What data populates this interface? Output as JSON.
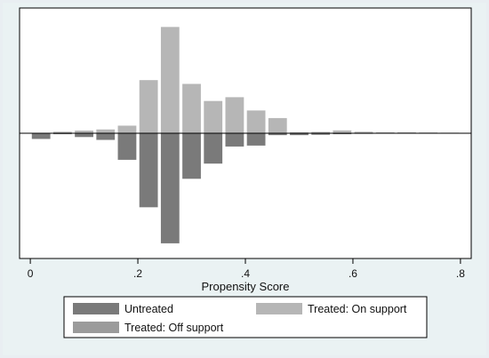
{
  "chart_data": {
    "type": "bar",
    "title": "",
    "xlabel": "Propensity Score",
    "ylabel": "",
    "xlim": [
      -0.02,
      0.82
    ],
    "ylim": [
      -0.66,
      0.66
    ],
    "bin_width": 0.04,
    "x_ticks": [
      {
        "value": 0,
        "label": "0"
      },
      {
        "value": 0.2,
        "label": ".2"
      },
      {
        "value": 0.4,
        "label": ".4"
      },
      {
        "value": 0.6,
        "label": ".6"
      },
      {
        "value": 0.8,
        "label": ".8"
      }
    ],
    "grid": false,
    "legend_position": "bottom",
    "series": [
      {
        "name": "Untreated",
        "color": "#7a7a7a",
        "direction": "down",
        "x": [
          0.02,
          0.06,
          0.1,
          0.14,
          0.18,
          0.22,
          0.26,
          0.3,
          0.34,
          0.38,
          0.42,
          0.46,
          0.5,
          0.54,
          0.58,
          0.62,
          0.66,
          0.7,
          0.74,
          0.78
        ],
        "values": [
          0.03,
          0.005,
          0.02,
          0.035,
          0.14,
          0.39,
          0.58,
          0.24,
          0.16,
          0.07,
          0.065,
          0.01,
          0.01,
          0.008,
          0.005,
          0.003,
          0.002,
          0.001,
          0.001,
          0.001
        ]
      },
      {
        "name": "Treated: On support",
        "color": "#b6b6b6",
        "direction": "up",
        "x": [
          0.02,
          0.06,
          0.1,
          0.14,
          0.18,
          0.22,
          0.26,
          0.3,
          0.34,
          0.38,
          0.42,
          0.46,
          0.5,
          0.54,
          0.58,
          0.62,
          0.66,
          0.7,
          0.74,
          0.78
        ],
        "values": [
          0.0,
          0.008,
          0.014,
          0.02,
          0.04,
          0.28,
          0.56,
          0.26,
          0.17,
          0.19,
          0.12,
          0.08,
          0.005,
          0.007,
          0.015,
          0.008,
          0.005,
          0.005,
          0.004,
          0.003
        ]
      },
      {
        "name": "Treated: Off support",
        "color": "#9b9b9b",
        "direction": "up",
        "x": [],
        "values": []
      }
    ]
  }
}
